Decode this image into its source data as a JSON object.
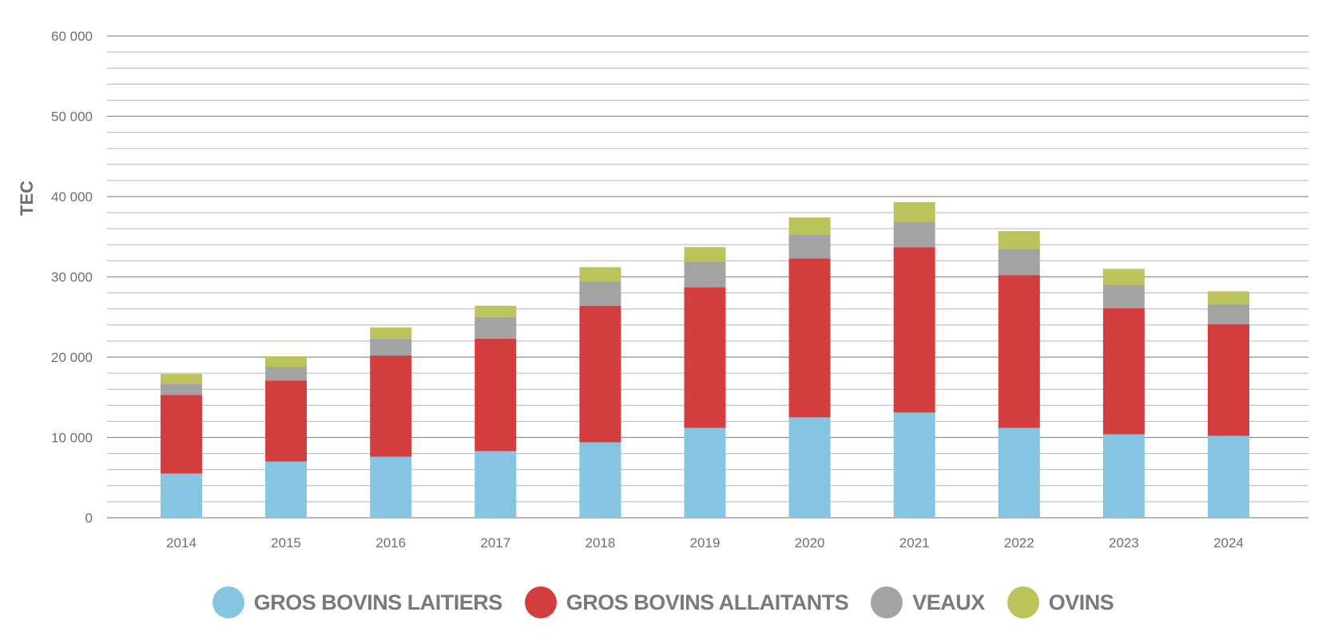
{
  "chart_data": {
    "type": "bar",
    "stacked": true,
    "title": "",
    "xlabel": "",
    "ylabel": "TEC",
    "ylim": [
      0,
      60000
    ],
    "y_ticks": [
      {
        "value": 0,
        "label": "0"
      },
      {
        "value": 10000,
        "label": "10 000"
      },
      {
        "value": 20000,
        "label": "20 000"
      },
      {
        "value": 30000,
        "label": "30 000"
      },
      {
        "value": 40000,
        "label": "40 000"
      },
      {
        "value": 50000,
        "label": "50 000"
      },
      {
        "value": 60000,
        "label": "60 000"
      }
    ],
    "minor_grid_step": 2000,
    "categories": [
      "2014",
      "2015",
      "2016",
      "2017",
      "2018",
      "2019",
      "2020",
      "2021",
      "2022",
      "2023",
      "2024"
    ],
    "series": [
      {
        "name": "GROS BOVINS LAITIERS",
        "color": "#86c5e2",
        "values": [
          5500,
          7000,
          7600,
          8300,
          9400,
          11200,
          12500,
          13100,
          11200,
          10400,
          10200
        ]
      },
      {
        "name": "GROS BOVINS ALLAITANTS",
        "color": "#d43d3d",
        "values": [
          9800,
          10100,
          12600,
          14000,
          17000,
          17500,
          19800,
          20600,
          19000,
          15700,
          13900
        ]
      },
      {
        "name": "VEAUX",
        "color": "#a3a3a3",
        "values": [
          1400,
          1700,
          2100,
          2700,
          3000,
          3200,
          3000,
          3200,
          3300,
          2900,
          2500
        ]
      },
      {
        "name": "OVINS",
        "color": "#bcc35a",
        "values": [
          1200,
          1300,
          1400,
          1400,
          1800,
          1800,
          2100,
          2400,
          2200,
          2000,
          1600
        ]
      }
    ]
  }
}
